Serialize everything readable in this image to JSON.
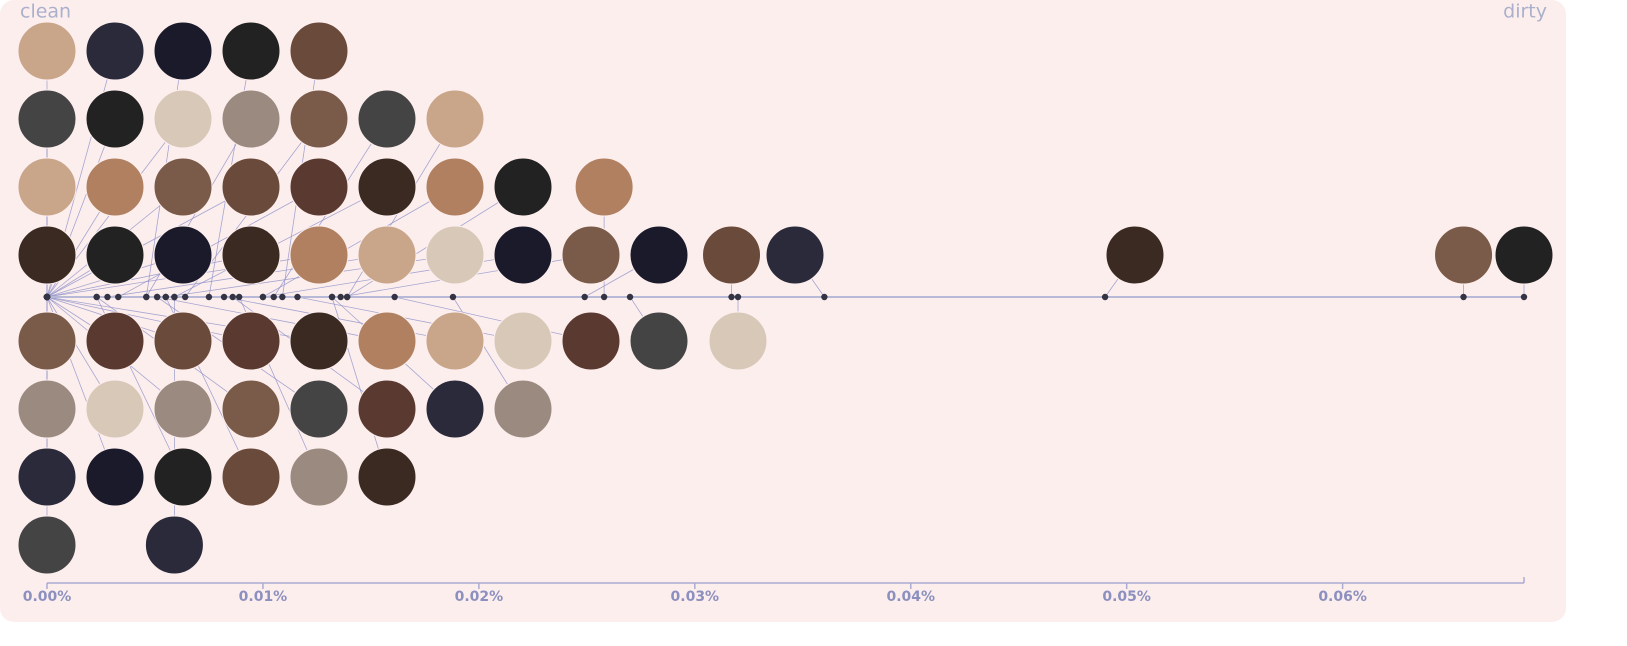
{
  "chart_data": {
    "type": "beeswarm",
    "left_label": "clean",
    "right_label": "dirty",
    "values": [
      0,
      0,
      0,
      0,
      0,
      0,
      0,
      0,
      0,
      0,
      0,
      0,
      0,
      0,
      0,
      0,
      0,
      0,
      0,
      0,
      0,
      0,
      0,
      0,
      0,
      0.0023,
      0.0023,
      0.0028,
      0.0033,
      0.0046,
      0.0046,
      0.0051,
      0.0051,
      0.0055,
      0.0055,
      0.0059,
      0.0059,
      0.0064,
      0.0075,
      0.0082,
      0.0086,
      0.0089,
      0.01,
      0.01,
      0.0105,
      0.0109,
      0.0116,
      0.0132,
      0.0132,
      0.0136,
      0.0139,
      0.0139,
      0.0161,
      0.0188,
      0.0249,
      0.0258,
      0.027,
      0.0317,
      0.032,
      0.036,
      0.049,
      0.0656,
      0.0684
    ],
    "xlim": [
      0,
      0.0684
    ],
    "xticks": [
      {
        "value": 0,
        "label": "0.00%"
      },
      {
        "value": 0.01,
        "label": "0.01%"
      },
      {
        "value": 0.02,
        "label": "0.02%"
      },
      {
        "value": 0.03,
        "label": "0.03%"
      },
      {
        "value": 0.04,
        "label": "0.04%"
      },
      {
        "value": 0.05,
        "label": "0.05%"
      },
      {
        "value": 0.06,
        "label": "0.06%"
      }
    ],
    "color": "#333344"
  }
}
